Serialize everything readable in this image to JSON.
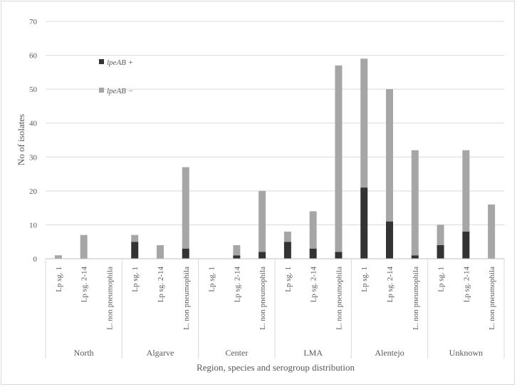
{
  "chart_data": {
    "type": "bar",
    "stacked": true,
    "xlabel": "Region, species and serogroup distribution",
    "ylabel": "No of isolates",
    "ylim": [
      0,
      70
    ],
    "yticks": [
      0,
      10,
      20,
      30,
      40,
      50,
      60,
      70
    ],
    "grid": true,
    "legend_position": "top-left",
    "groups": [
      {
        "name": "North",
        "categories": [
          "Lp sg. 1",
          "Lp sg. 2-14",
          "L. non pneumophila"
        ]
      },
      {
        "name": "Algarve",
        "categories": [
          "Lp sg. 1",
          "Lp sg. 2-14",
          "L. non pneumophila"
        ]
      },
      {
        "name": "Center",
        "categories": [
          "Lp sg. 1",
          "Lp sg. 2-14",
          "L. non pneumophila"
        ]
      },
      {
        "name": "LMA",
        "categories": [
          "Lp sg. 1",
          "Lp sg. 2-14",
          "L. non pneumophila"
        ]
      },
      {
        "name": "Alentejo",
        "categories": [
          "Lp sg. 1",
          "Lp sg. 2-14",
          "L. non pneumophila"
        ]
      },
      {
        "name": "Unknown",
        "categories": [
          "Lp sg. 1",
          "Lp sg. 2-14",
          "L. non pneumophila"
        ]
      }
    ],
    "series": [
      {
        "name": "lpeAB +",
        "color": "#333333",
        "values": [
          0,
          0,
          0,
          5,
          0,
          3,
          0,
          1,
          2,
          5,
          3,
          2,
          21,
          11,
          1,
          4,
          8,
          0
        ]
      },
      {
        "name": "lpeAB −",
        "color": "#a6a6a6",
        "values": [
          1,
          7,
          0,
          2,
          4,
          24,
          0,
          3,
          18,
          3,
          11,
          55,
          38,
          39,
          31,
          6,
          24,
          16
        ]
      }
    ]
  }
}
